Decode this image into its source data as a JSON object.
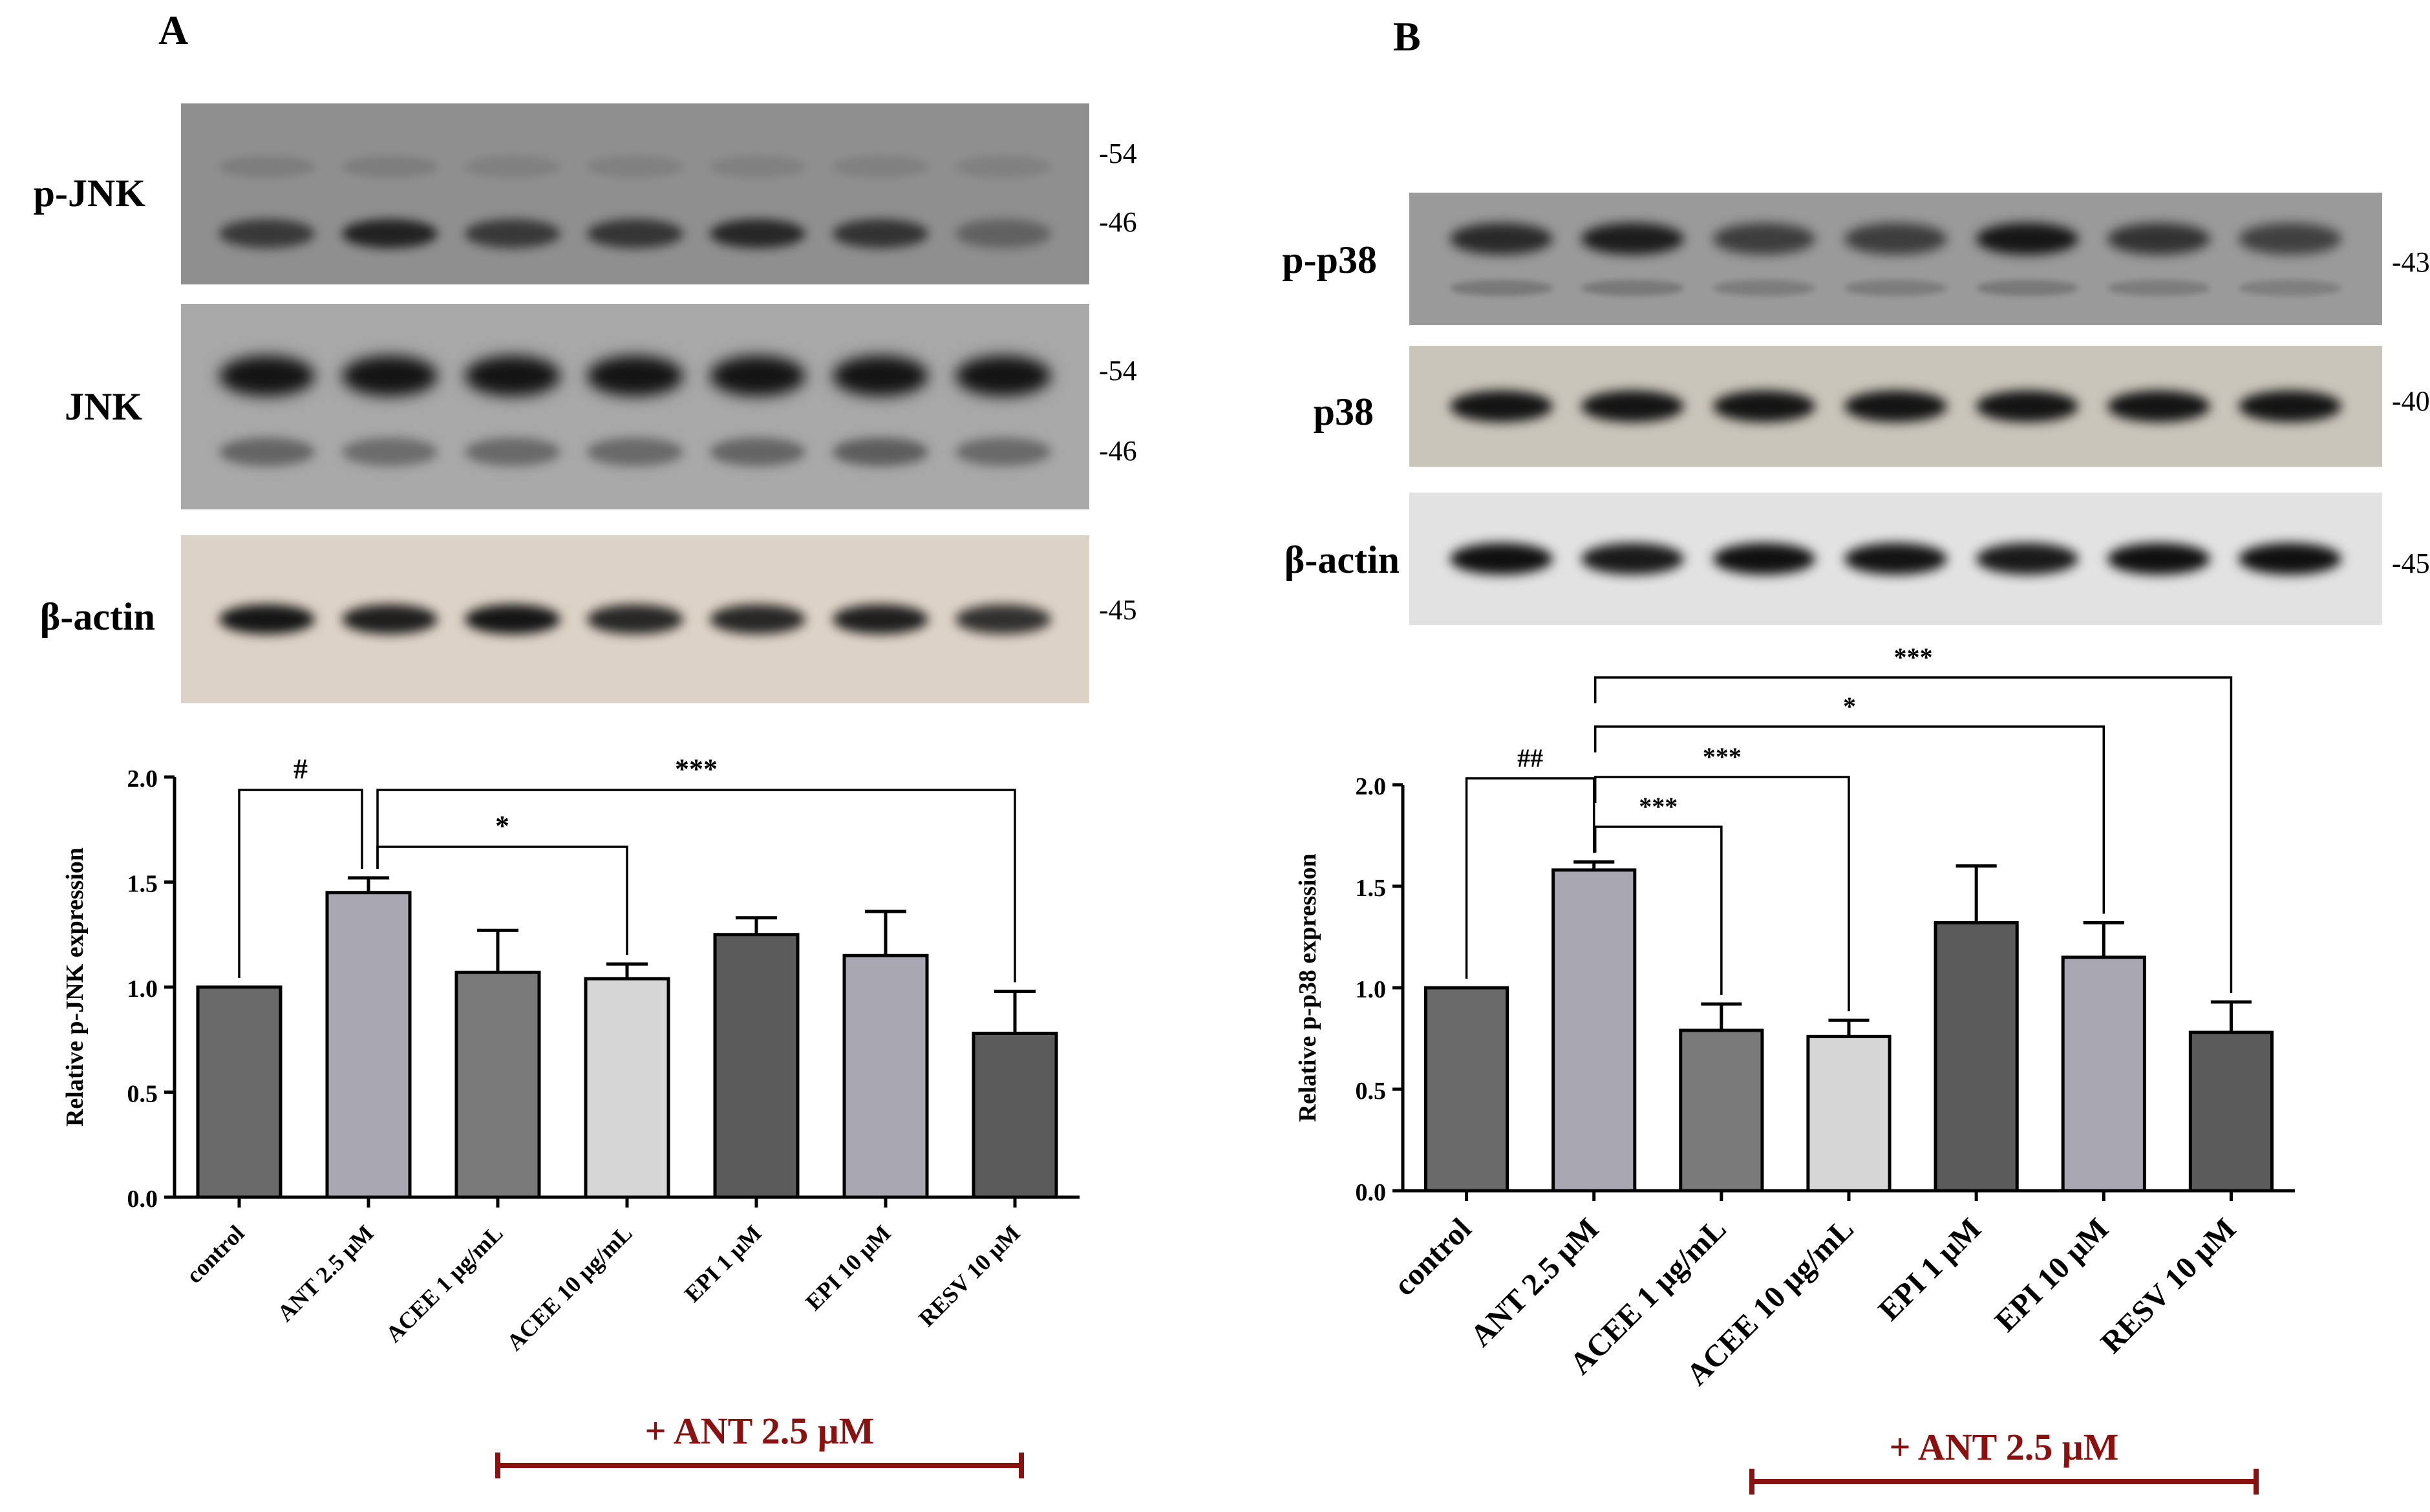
{
  "panels": [
    {
      "letter": "A",
      "blots": [
        {
          "label": "p-JNK",
          "markers": [
            "-54",
            "-46"
          ],
          "bg": "#8f8f8f",
          "band_color": "#1c1c1c",
          "rows": [
            {
              "intensity": [
                0.15,
                0.15,
                0.12,
                0.12,
                0.12,
                0.12,
                0.12
              ],
              "h": 0.12
            },
            {
              "intensity": [
                0.75,
                0.95,
                0.75,
                0.78,
                0.9,
                0.8,
                0.4
              ],
              "h": 0.16
            }
          ]
        },
        {
          "label": "JNK",
          "markers": [
            "-54",
            "-46"
          ],
          "bg": "#a8a8a8",
          "band_color": "#141414",
          "rows": [
            {
              "intensity": [
                1,
                1,
                1,
                1,
                1,
                1,
                1
              ],
              "h": 0.2
            },
            {
              "intensity": [
                0.45,
                0.4,
                0.42,
                0.42,
                0.45,
                0.5,
                0.42
              ],
              "h": 0.14
            }
          ]
        },
        {
          "label": "β-actin",
          "markers": [
            "-45"
          ],
          "bg": "#ddd2c6",
          "band_color": "#151515",
          "rows": [
            {
              "intensity": [
                1,
                0.95,
                1,
                0.9,
                0.9,
                0.95,
                0.85
              ],
              "h": 0.18
            }
          ]
        }
      ],
      "annotation": "+ ANT 2.5 μM",
      "annotation_color": "#8b1010"
    },
    {
      "letter": "B",
      "blots": [
        {
          "label": "p-p38",
          "markers": [
            "-43"
          ],
          "bg": "#9a9a9a",
          "band_color": "#161616",
          "rows": [
            {
              "intensity": [
                0.85,
                0.95,
                0.7,
                0.7,
                1,
                0.78,
                0.68
              ],
              "h": 0.24
            },
            {
              "intensity": [
                0.25,
                0.25,
                0.22,
                0.22,
                0.25,
                0.22,
                0.2
              ],
              "h": 0.12
            }
          ]
        },
        {
          "label": "p38",
          "markers": [
            "-40"
          ],
          "bg": "#cac5bb",
          "band_color": "#141414",
          "rows": [
            {
              "intensity": [
                1,
                1,
                1,
                1,
                1,
                1,
                1
              ],
              "h": 0.26
            }
          ]
        },
        {
          "label": "β-actin",
          "markers": [
            "-45"
          ],
          "bg": "#e2e2e2",
          "band_color": "#101010",
          "rows": [
            {
              "intensity": [
                1,
                0.95,
                1,
                0.98,
                0.95,
                1,
                1
              ],
              "h": 0.24
            }
          ]
        }
      ],
      "annotation": "+ ANT 2.5 μM",
      "annotation_color": "#8b1010"
    }
  ],
  "chart_data": [
    {
      "type": "bar",
      "categories": [
        "control",
        "ANT 2.5 μM",
        "ACEE 1 μg/mL",
        "ACEE 10 μg/mL",
        "EPI 1 μM",
        "EPI 10 μM",
        "RESV 10 μM"
      ],
      "values": [
        1.0,
        1.45,
        1.07,
        1.04,
        1.25,
        1.15,
        0.78
      ],
      "errors": [
        0,
        0.07,
        0.2,
        0.07,
        0.08,
        0.21,
        0.2
      ],
      "colors": [
        "#6a6a6a",
        "#a9a8b2",
        "#7a7a7a",
        "#d6d6d6",
        "#5b5b5b",
        "#a9a8b2",
        "#5b5b5b"
      ],
      "ylabel": "Relative p-JNK expression",
      "ylim": [
        0,
        2.0
      ],
      "yticks": [
        "0.0",
        "0.5",
        "1.0",
        "1.5",
        "2.0"
      ],
      "significance": [
        {
          "from": 0,
          "to": 1,
          "label": "#",
          "level": 0
        },
        {
          "from": 1,
          "to": 3,
          "label": "*",
          "level": 1
        },
        {
          "from": 1,
          "to": 6,
          "label": "***",
          "level": 2
        }
      ]
    },
    {
      "type": "bar",
      "categories": [
        "control",
        "ANT 2.5 μM",
        "ACEE 1 μg/mL",
        "ACEE 10 μg/mL",
        "EPI 1 μM",
        "EPI 10 μM",
        "RESV 10 μM"
      ],
      "values": [
        1.0,
        1.58,
        0.79,
        0.76,
        1.32,
        1.15,
        0.78
      ],
      "errors": [
        0,
        0.04,
        0.13,
        0.08,
        0.28,
        0.17,
        0.15
      ],
      "colors": [
        "#6a6a6a",
        "#a9a8b2",
        "#7a7a7a",
        "#d6d6d6",
        "#5b5b5b",
        "#a9a8b2",
        "#5b5b5b"
      ],
      "ylabel": "Relative p-p38 expression",
      "ylim": [
        0,
        2.0
      ],
      "yticks": [
        "0.0",
        "0.5",
        "1.0",
        "1.5",
        "2.0"
      ],
      "significance": [
        {
          "from": 0,
          "to": 1,
          "label": "##",
          "level": 0
        },
        {
          "from": 1,
          "to": 2,
          "label": "***",
          "level": 1
        },
        {
          "from": 1,
          "to": 3,
          "label": "***",
          "level": 2
        },
        {
          "from": 1,
          "to": 5,
          "label": "*",
          "level": 3
        },
        {
          "from": 1,
          "to": 6,
          "label": "***",
          "level": 4
        }
      ]
    }
  ]
}
